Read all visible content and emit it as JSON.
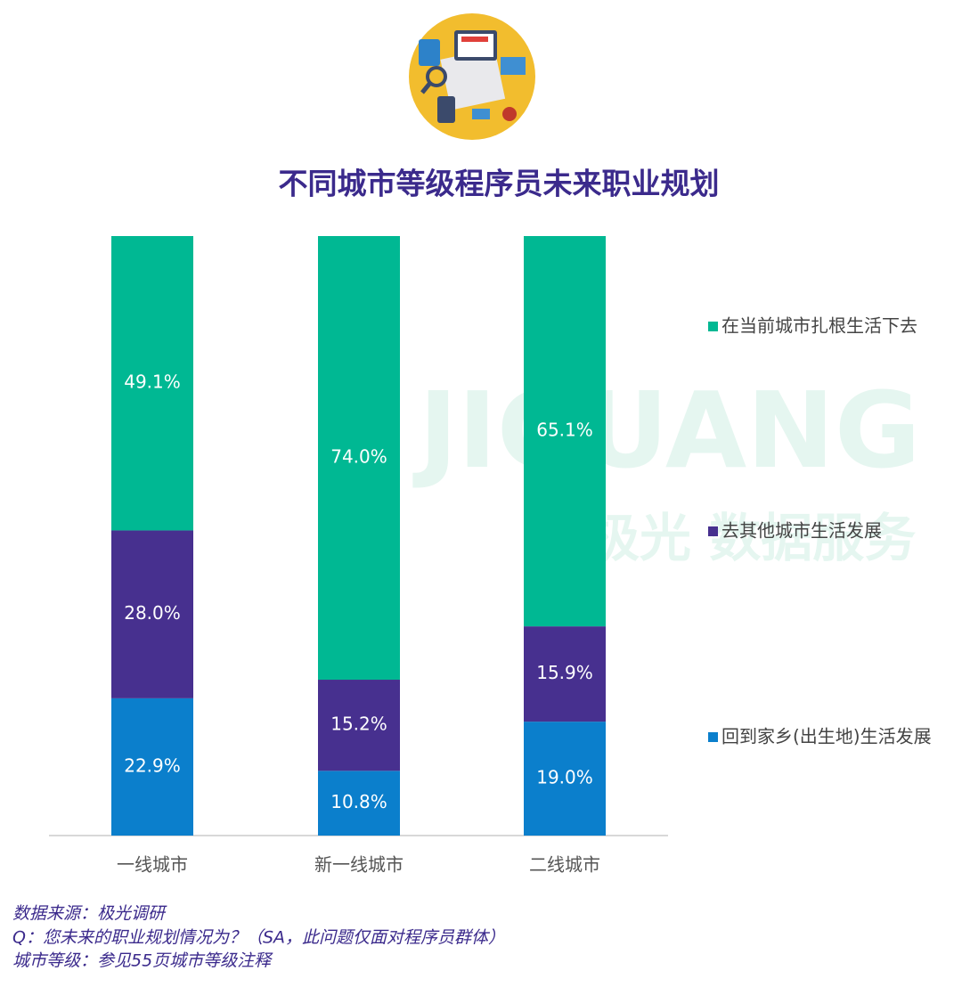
{
  "chart_data": {
    "type": "bar",
    "stacked": true,
    "title": "不同城市等级程序员未来职业规划",
    "categories": [
      "一线城市",
      "新一线城市",
      "二线城市"
    ],
    "series": [
      {
        "name": "在当前城市扎根生活下去",
        "color": "#00b893",
        "values": [
          49.1,
          74.0,
          65.1
        ],
        "value_labels": [
          "49.1%",
          "74.0%",
          "65.1%"
        ]
      },
      {
        "name": "去其他城市生活发展",
        "color": "#47308f",
        "values": [
          28.0,
          15.2,
          15.9
        ],
        "value_labels": [
          "28.0%",
          "15.2%",
          "15.9%"
        ]
      },
      {
        "name": "回到家乡(出生地)生活发展",
        "color": "#0b7fcc",
        "values": [
          22.9,
          10.8,
          19.0
        ],
        "value_labels": [
          "22.9%",
          "10.8%",
          "19.0%"
        ]
      }
    ],
    "watermark": [
      "JIGUANG",
      "极光 数据服务"
    ],
    "notes": [
      "数据来源：极光调研",
      "Q：您未来的职业规划情况为？（SA，此问题仅面对程序员群体）",
      "城市等级：参见55页城市等级注释"
    ]
  }
}
